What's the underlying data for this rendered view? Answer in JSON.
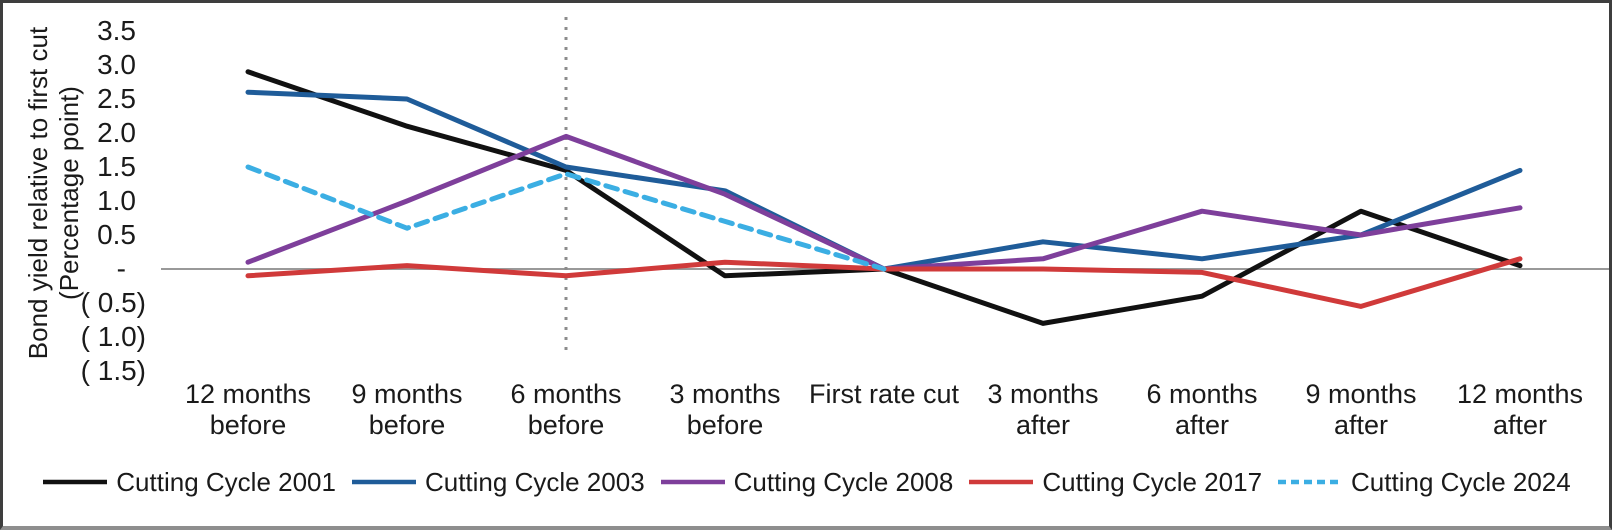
{
  "chart_data": {
    "type": "line",
    "title": "",
    "ylabel": "Bond yield relative to first cut (Percentage point)",
    "ylabel_lines": [
      "Bond yield relative to first cut",
      "(Percentage point)"
    ],
    "xlabel": "",
    "categories": [
      "12 months before",
      "9 months before",
      "6 months before",
      "3 months before",
      "First rate cut",
      "3 months after",
      "6 months after",
      "9 months after",
      "12 months after"
    ],
    "ylim": [
      -1.5,
      3.5
    ],
    "y_tick_step": 0.5,
    "grid": "none",
    "legend_position": "bottom",
    "y_ticks": [
      {
        "label": "3.5",
        "value": 3.5
      },
      {
        "label": "3.0",
        "value": 3.0
      },
      {
        "label": "2.5",
        "value": 2.5
      },
      {
        "label": "2.0",
        "value": 2.0
      },
      {
        "label": "1.5",
        "value": 1.5
      },
      {
        "label": "1.0",
        "value": 1.0
      },
      {
        "label": "0.5",
        "value": 0.5
      },
      {
        "label": "-",
        "value": 0
      },
      {
        "label": "( 0.5)",
        "value": -0.5
      },
      {
        "label": "( 1.0)",
        "value": -1.0
      },
      {
        "label": "( 1.5)",
        "value": -1.5
      }
    ],
    "series": [
      {
        "name": "Cutting Cycle 2001",
        "color": "#111111",
        "dash": null,
        "values": [
          2.9,
          2.1,
          1.45,
          -0.1,
          0,
          -0.8,
          -0.4,
          0.85,
          0.05
        ]
      },
      {
        "name": "Cutting Cycle 2003",
        "color": "#1f5c99",
        "dash": null,
        "values": [
          2.6,
          2.5,
          1.5,
          1.15,
          0,
          0.4,
          0.15,
          0.5,
          1.45
        ]
      },
      {
        "name": "Cutting Cycle 2008",
        "color": "#7e3f9b",
        "dash": null,
        "values": [
          0.1,
          1.0,
          1.95,
          1.1,
          0,
          0.15,
          0.85,
          0.5,
          0.9
        ]
      },
      {
        "name": "Cutting Cycle 2017",
        "color": "#d03a3a",
        "dash": null,
        "values": [
          -0.1,
          0.05,
          -0.1,
          0.1,
          0,
          0,
          -0.05,
          -0.55,
          0.15
        ]
      },
      {
        "name": "Cutting Cycle 2024",
        "color": "#3baee3",
        "dash": "12 8",
        "values": [
          1.5,
          0.6,
          1.4,
          0.7,
          0,
          null,
          null,
          null,
          null
        ]
      }
    ],
    "zero_line_color": "#999999",
    "vline": {
      "category": "6 months before",
      "color": "#8c8c8c",
      "style": "dotted"
    }
  }
}
